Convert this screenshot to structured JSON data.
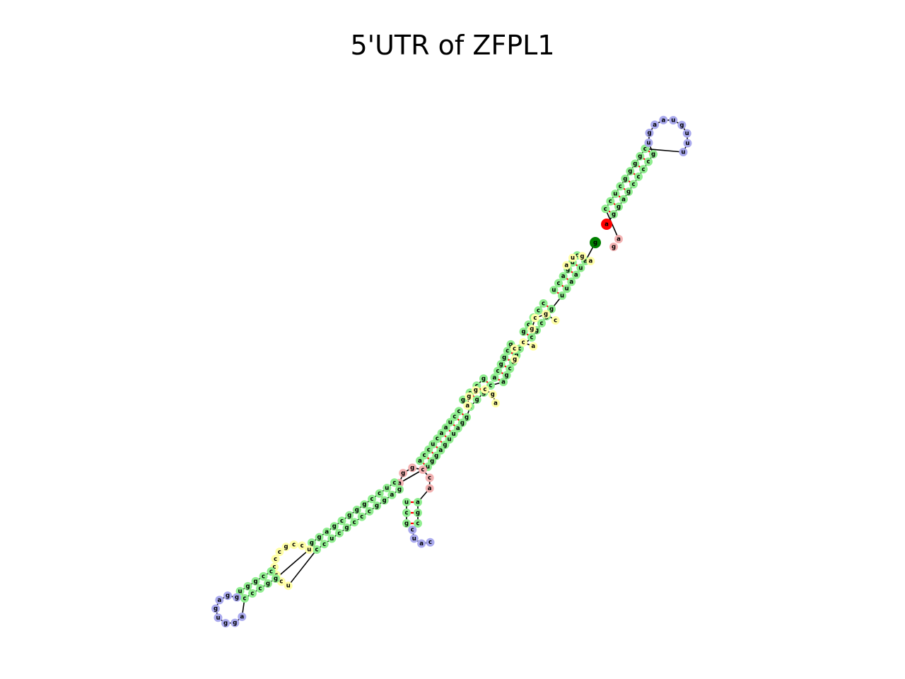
{
  "title": "5'UTR of ZFPL1",
  "colors": {
    "stem": "#90ee90",
    "hairpin_loop": "#aaaaee",
    "internal_loop": "#ffffa8",
    "multi_loop": "#f3b2b2",
    "five_prime_end": "#008000",
    "three_prime_end": "#ff0000",
    "backbone": "#000000",
    "pair_bond": "#ff0000"
  },
  "hairpins": {
    "top": [
      "u",
      "g",
      "a",
      "a",
      "u",
      "g",
      "u",
      "u",
      "u"
    ],
    "bottom_left": [
      "a",
      "g",
      "g",
      "u",
      "g",
      "a",
      "g",
      "g"
    ],
    "side_branch": [
      "c",
      "a",
      "u",
      "c"
    ]
  },
  "five_prime_nucleotide": "g",
  "three_prime_nucleotide": "a",
  "multiloop_bases": [
    "a",
    "g"
  ],
  "main_stem": {
    "strand_a": [
      "a",
      "u",
      "a",
      "a",
      "u",
      "u",
      "g",
      "g",
      "c",
      "g",
      "c",
      "c",
      "g",
      "c",
      "c",
      "g",
      "c",
      "g",
      "g",
      "c",
      "g",
      "g",
      "a",
      "u",
      "u",
      "g",
      "a",
      "g",
      "g",
      "u",
      "g",
      "g",
      "g",
      "c",
      "c",
      "c",
      "g",
      "c"
    ],
    "strand_b": [
      "c",
      "u",
      "u",
      "a",
      "u",
      "u",
      "c",
      "c",
      "g",
      "c",
      "g",
      "g",
      "c",
      "g",
      "g",
      "c",
      "g",
      "c",
      "c",
      "g",
      "c",
      "c",
      "u",
      "a",
      "a",
      "c",
      "u",
      "c",
      "c",
      "a",
      "c",
      "c",
      "c",
      "g",
      "g",
      "g",
      "c",
      "g"
    ]
  },
  "side_stem": {
    "strand_a": [
      "g",
      "c",
      "a",
      "c",
      "c",
      "g"
    ],
    "strand_b": [
      "u",
      "g",
      "u",
      "g",
      "g",
      "c"
    ]
  },
  "lower_stem": {
    "strand_a": [
      "g",
      "a",
      "g",
      "g",
      "c",
      "c",
      "c",
      "g",
      "c",
      "u",
      "c",
      "c"
    ],
    "strand_b": [
      "c",
      "u",
      "c",
      "c",
      "g",
      "g",
      "g",
      "c",
      "g",
      "a",
      "g",
      "g"
    ]
  },
  "upper_stem": {
    "strand_a": [
      "g",
      "c",
      "c",
      "c",
      "c",
      "g",
      "a",
      "g",
      "g"
    ],
    "strand_b": [
      "c",
      "g",
      "g",
      "g",
      "g",
      "c",
      "u",
      "c",
      "c"
    ]
  },
  "internal_loop_bases": [
    "a",
    "g",
    "a",
    "c",
    "c",
    "g",
    "g",
    "a",
    "a",
    "g",
    "c",
    "a",
    "c",
    "c",
    "c",
    "c",
    "g",
    "c",
    "c",
    "u"
  ]
}
